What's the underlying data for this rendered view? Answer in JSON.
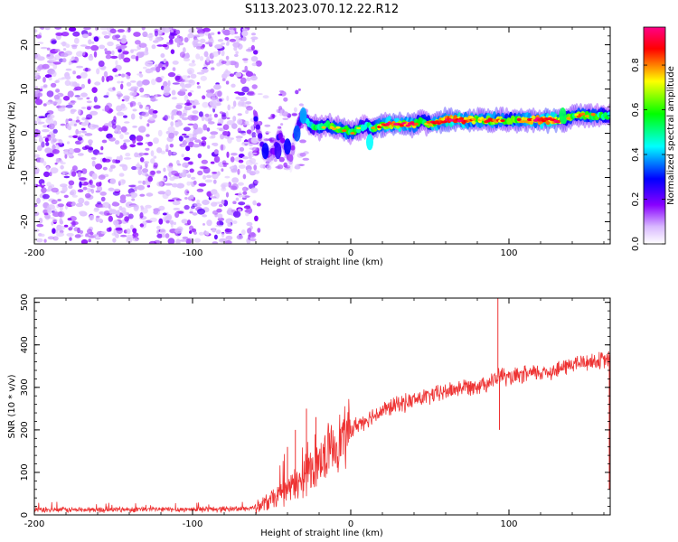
{
  "title": "S113.2023.070.12.22.R12",
  "chart_data": [
    {
      "type": "heatmap",
      "xlabel": "Height of straight line (km)",
      "ylabel": "Frequency (Hz)",
      "xlim": [
        -200,
        164
      ],
      "ylim": [
        -25,
        24
      ],
      "xticks": [
        -200,
        -100,
        0,
        100
      ],
      "yticks": [
        -20,
        -10,
        0,
        10,
        20
      ],
      "noise_region_x": [
        -200,
        -58
      ],
      "colorbar": {
        "label": "Normalized spectral amplitude",
        "range": [
          0,
          0.97
        ],
        "ticks": [
          0.0,
          0.2,
          0.4,
          0.6,
          0.8
        ],
        "tick_labels": [
          "0.0",
          "0.2",
          "0.4",
          "0.6",
          "0.8"
        ],
        "colors": [
          "#ffffff",
          "#8800ff",
          "#0000ff",
          "#00ffff",
          "#00ff00",
          "#ffff00",
          "#ff0000",
          "#ff0088"
        ]
      },
      "ridge": {
        "x": [
          -60,
          -56,
          -52,
          -48,
          -45,
          -42,
          -38,
          -35,
          -32,
          -30,
          -26,
          -20,
          -15,
          -10,
          -5,
          0,
          5,
          10,
          15,
          20,
          30,
          40,
          45,
          50,
          60,
          70,
          80,
          90,
          100,
          110,
          120,
          130,
          135,
          140,
          150,
          164
        ],
        "freq": [
          3,
          -3,
          -5,
          -4,
          0,
          -3,
          -6,
          0,
          3,
          4,
          2,
          1,
          2,
          1,
          1,
          0,
          1,
          2,
          1,
          2,
          2,
          2,
          3,
          2,
          3,
          3,
          3,
          3,
          3,
          3,
          3,
          3,
          3,
          4,
          4,
          4
        ],
        "amplitude": [
          0.25,
          0.2,
          0.15,
          0.2,
          0.25,
          0.15,
          0.15,
          0.2,
          0.3,
          0.35,
          0.45,
          0.55,
          0.55,
          0.6,
          0.65,
          0.6,
          0.55,
          0.45,
          0.6,
          0.7,
          0.75,
          0.7,
          0.5,
          0.65,
          0.8,
          0.8,
          0.65,
          0.7,
          0.6,
          0.7,
          0.75,
          0.8,
          0.55,
          0.6,
          0.6,
          0.5
        ]
      }
    },
    {
      "type": "line",
      "xlabel": "Height of straight line (km)",
      "ylabel": "SNR (10 * v/v)",
      "xlim": [
        -200,
        164
      ],
      "ylim": [
        0,
        510
      ],
      "xticks": [
        -200,
        -100,
        0,
        100
      ],
      "yticks": [
        0,
        100,
        200,
        300,
        400,
        500
      ],
      "line_color": "#ee3333",
      "series": [
        {
          "x": [
            -200,
            -180,
            -160,
            -140,
            -120,
            -100,
            -80,
            -65,
            -58,
            -50,
            -45,
            -40,
            -35,
            -30,
            -25,
            -20,
            -15,
            -10,
            -5,
            0,
            5,
            10,
            15,
            20,
            30,
            40,
            50,
            60,
            70,
            80,
            90,
            95,
            100,
            110,
            120,
            130,
            140,
            150,
            164
          ],
          "y": [
            12,
            12,
            12,
            13,
            13,
            13,
            14,
            15,
            20,
            35,
            45,
            60,
            70,
            85,
            110,
            130,
            150,
            165,
            180,
            200,
            215,
            225,
            235,
            245,
            260,
            270,
            280,
            290,
            300,
            305,
            315,
            330,
            320,
            330,
            335,
            340,
            355,
            360,
            365
          ]
        }
      ],
      "spikes": [
        {
          "x": -40,
          "y": 160
        },
        {
          "x": -35,
          "y": 200
        },
        {
          "x": -28,
          "y": 250
        },
        {
          "x": -22,
          "y": 230
        },
        {
          "x": 93,
          "y": 510
        },
        {
          "x": 94,
          "y": 200
        }
      ]
    }
  ]
}
